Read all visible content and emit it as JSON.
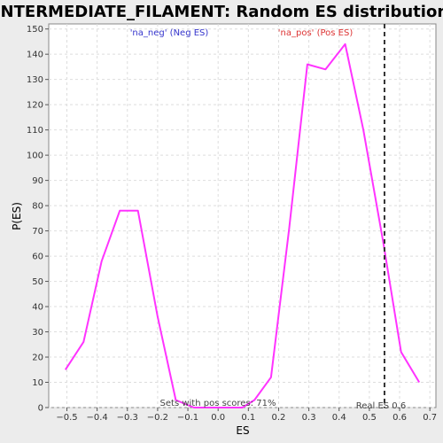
{
  "chart_data": {
    "type": "line",
    "title": "INTERMEDIATE_FILAMENT: Random ES distribution",
    "xlabel": "ES",
    "ylabel": "P(ES)",
    "xlim": [
      -0.56,
      0.72
    ],
    "ylim": [
      0,
      152
    ],
    "x_ticks": [
      -0.5,
      -0.4,
      -0.3,
      -0.2,
      -0.1,
      0.0,
      0.1,
      0.2,
      0.3,
      0.4,
      0.5,
      0.6,
      0.7
    ],
    "x_tick_labels": [
      "−0.5",
      "−0.4",
      "−0.3",
      "−0.2",
      "−0.1",
      "0.0",
      "0.1",
      "0.2",
      "0.3",
      "0.4",
      "0.5",
      "0.6",
      "0.7"
    ],
    "y_ticks": [
      0,
      10,
      20,
      30,
      40,
      50,
      60,
      70,
      80,
      90,
      100,
      110,
      120,
      130,
      140,
      150
    ],
    "grid": true,
    "series": [
      {
        "color": "#ff33ff",
        "x": [
          -0.505,
          -0.445,
          -0.385,
          -0.325,
          -0.265,
          -0.2,
          -0.14,
          -0.08,
          0.0,
          0.08,
          0.12,
          0.175,
          0.235,
          0.295,
          0.355,
          0.42,
          0.48,
          0.545,
          0.605,
          0.665
        ],
        "y": [
          15,
          26,
          58,
          78,
          78,
          36,
          3,
          0,
          0,
          0,
          3,
          12,
          71,
          136,
          134,
          144,
          110,
          66,
          22,
          10
        ]
      }
    ],
    "real_es": {
      "x": 0.55,
      "label": "Real ES 0.6",
      "color": "#333333"
    },
    "annotations": {
      "neg_label": "'na_neg' (Neg ES)",
      "neg_color": "#3333cc",
      "pos_label": "'na_pos' (Pos ES)",
      "pos_color": "#dd3333",
      "sets_note": "Sets with pos scores: 71%"
    }
  }
}
